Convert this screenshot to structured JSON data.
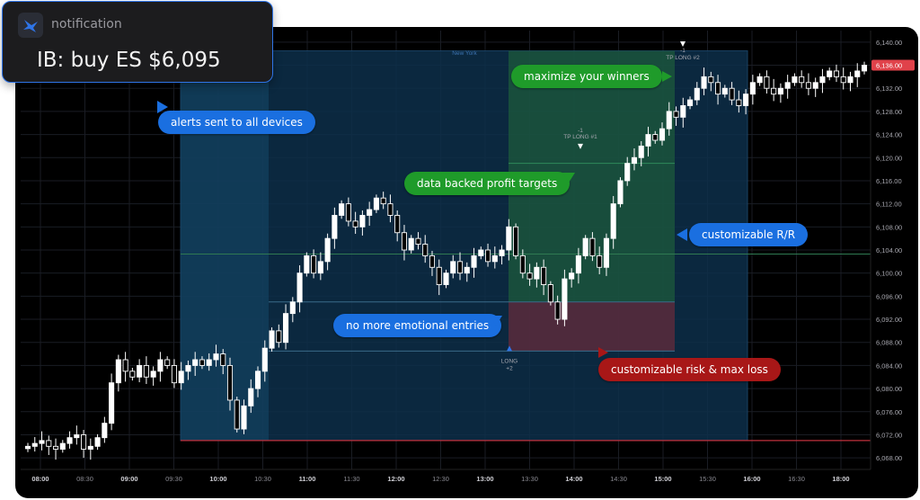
{
  "notification": {
    "app_label": "notification",
    "message": "IB: buy ES $6,095",
    "icon": "bird-logo-icon"
  },
  "chart": {
    "session_label": "New York",
    "current_price": "6,136.00",
    "entry_marker": {
      "label_line1": "LONG",
      "label_line2": "+2"
    },
    "tp1_marker": {
      "label_line1": "-1",
      "label_line2": "TP LONG #1"
    },
    "tp2_marker": {
      "label_line1": "-1",
      "label_line2": "TP LONG #2"
    },
    "colors": {
      "candle": "#ffffff",
      "session_box": "#0e2f4a",
      "profit_zone": "#1d5a3c",
      "risk_zone": "#5a2a3c",
      "price_tag": "#e0424a",
      "background": "#000000"
    }
  },
  "callouts": {
    "alerts": "alerts sent to all devices",
    "maximize": "maximize your winners",
    "profit_targets": "data backed profit targets",
    "rr": "customizable R/R",
    "emotional": "no more emotional entries",
    "risk": "customizable risk & max loss"
  },
  "chart_data": {
    "type": "candlestick",
    "x_ticks": [
      "08:00",
      "08:30",
      "09:00",
      "09:30",
      "10:00",
      "10:30",
      "11:00",
      "11:30",
      "12:00",
      "12:30",
      "13:00",
      "13:30",
      "14:00",
      "14:30",
      "15:00",
      "15:30",
      "16:00",
      "16:30",
      "18:00"
    ],
    "y_ticks": [
      "6,140.00",
      "6,136.00",
      "6,132.00",
      "6,128.00",
      "6,124.00",
      "6,120.00",
      "6,116.00",
      "6,112.00",
      "6,108.00",
      "6,104.00",
      "6,100.00",
      "6,096.00",
      "6,092.00",
      "6,088.00",
      "6,084.00",
      "6,080.00",
      "6,076.00",
      "6,072.00",
      "6,068.00"
    ],
    "ylim": [
      6066,
      6142
    ],
    "levels": {
      "entry": 6095,
      "stop": 6086.5,
      "tp1": 6119,
      "tp2": 6137,
      "mid": 6103.3,
      "session_low": 6071
    },
    "closes": [
      6070,
      6070.5,
      6071,
      6070,
      6069.5,
      6070.5,
      6071.5,
      6072,
      6069.5,
      6070,
      6071.5,
      6074,
      6081,
      6085,
      6083,
      6082,
      6084,
      6082,
      6083,
      6085,
      6084,
      6081,
      6083,
      6084,
      6085,
      6084,
      6085,
      6086,
      6084,
      6078,
      6073,
      6077,
      6080,
      6083,
      6087,
      6090,
      6088,
      6093,
      6095,
      6100,
      6103,
      6100,
      6102,
      6106,
      6110,
      6112,
      6109,
      6108,
      6110,
      6111,
      6113,
      6112,
      6110,
      6107,
      6104,
      6106,
      6105,
      6103,
      6101,
      6098,
      6100,
      6102,
      6100,
      6101,
      6103,
      6104,
      6102,
      6103,
      6104,
      6108,
      6103,
      6100,
      6099,
      6101,
      6098,
      6095,
      6092,
      6099,
      6100,
      6103,
      6106,
      6103,
      6101,
      6106,
      6112,
      6116,
      6119,
      6120,
      6122,
      6124,
      6123,
      6125,
      6128,
      6127,
      6129,
      6130,
      6132,
      6134,
      6133,
      6131,
      6132,
      6130,
      6129,
      6131,
      6133,
      6134,
      6132,
      6131,
      6132,
      6133,
      6134,
      6133,
      6132,
      6133,
      6134,
      6135,
      6134,
      6133,
      6134,
      6135,
      6136
    ]
  }
}
